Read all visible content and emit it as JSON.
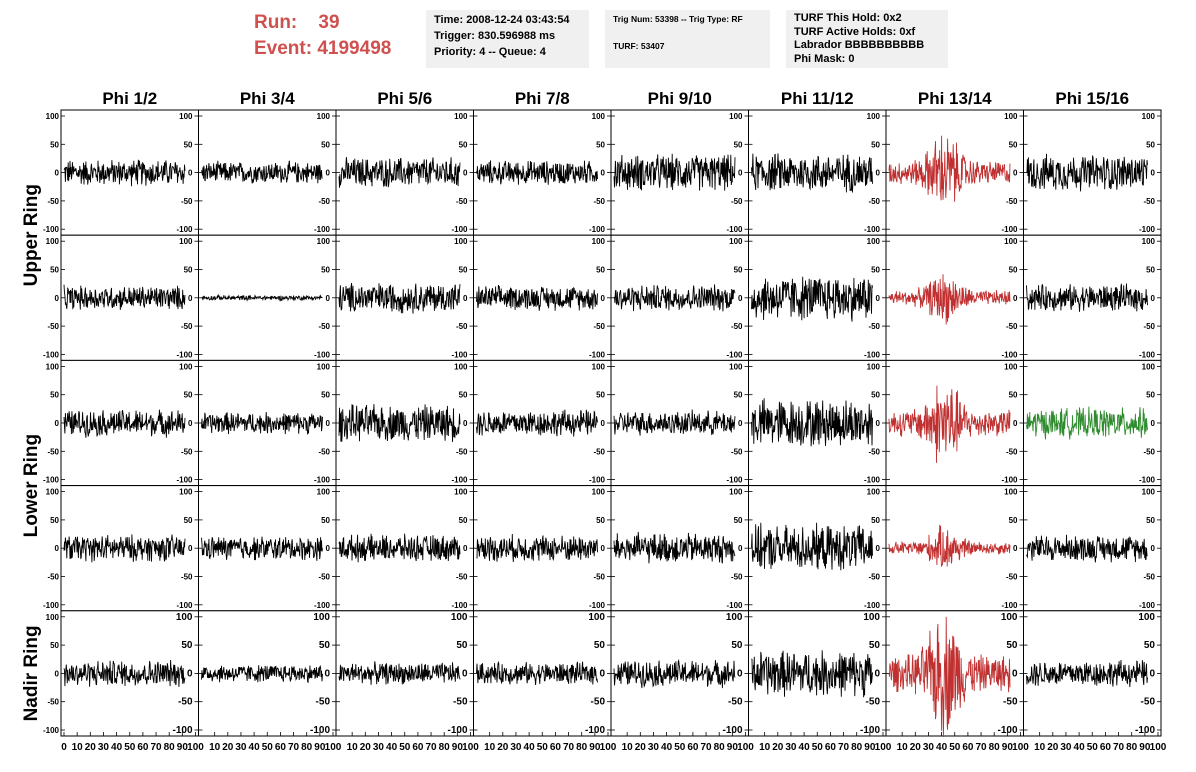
{
  "header": {
    "run_label": "Run:",
    "run_value": "39",
    "event_label": "Event:",
    "event_value": "4199498"
  },
  "info_box_1": {
    "time": "Time: 2008-12-24 03:43:54",
    "trigger": "Trigger: 830.596988 ms",
    "priority": "Priority: 4 -- Queue: 4"
  },
  "info_box_2": {
    "trig": "Trig Num: 53398 -- Trig Type: RF",
    "turf": "TURF: 53407"
  },
  "info_box_3": {
    "hold": "TURF This Hold: 0x2",
    "active": "TURF Active Holds: 0xf",
    "labrador": "Labrador BBBBBBBBBB",
    "mask": "Phi Mask: 0"
  },
  "chart_data": {
    "type": "line",
    "columns": [
      "Phi 1/2",
      "Phi 3/4",
      "Phi 5/6",
      "Phi 7/8",
      "Phi 9/10",
      "Phi 11/12",
      "Phi 13/14",
      "Phi 15/16"
    ],
    "ring_labels": [
      {
        "label": "Upper Ring",
        "rows": [
          0,
          1
        ]
      },
      {
        "label": "Lower Ring",
        "rows": [
          2,
          3
        ]
      },
      {
        "label": "Nadir Ring",
        "rows": [
          4
        ]
      }
    ],
    "rows": 5,
    "xlim": [
      0,
      100
    ],
    "ylim": [
      -100,
      100
    ],
    "x_tick_labels": [
      "0",
      "10",
      "20",
      "30",
      "40",
      "50",
      "60",
      "70",
      "80",
      "90",
      "100"
    ],
    "y_tick_labels": [
      "100",
      "50",
      "0",
      "-50",
      "-100"
    ],
    "colors": {
      "normal": "#000000",
      "triggered": "#c03030",
      "highlight": "#2e8b2e"
    },
    "amplitudes": [
      [
        22,
        18,
        25,
        20,
        30,
        32,
        55,
        30
      ],
      [
        20,
        4,
        25,
        20,
        22,
        38,
        35,
        22
      ],
      [
        22,
        18,
        30,
        22,
        20,
        40,
        62,
        25
      ],
      [
        22,
        20,
        22,
        22,
        25,
        38,
        30,
        22
      ],
      [
        22,
        15,
        18,
        18,
        22,
        38,
        85,
        22
      ]
    ],
    "trace_colors": [
      [
        "normal",
        "normal",
        "normal",
        "normal",
        "normal",
        "normal",
        "triggered",
        "normal"
      ],
      [
        "normal",
        "normal",
        "normal",
        "normal",
        "normal",
        "normal",
        "triggered",
        "normal"
      ],
      [
        "normal",
        "normal",
        "normal",
        "normal",
        "normal",
        "normal",
        "triggered",
        "highlight"
      ],
      [
        "normal",
        "normal",
        "normal",
        "normal",
        "normal",
        "normal",
        "triggered",
        "normal"
      ],
      [
        "normal",
        "normal",
        "normal",
        "normal",
        "normal",
        "normal",
        "triggered",
        "normal"
      ]
    ]
  }
}
